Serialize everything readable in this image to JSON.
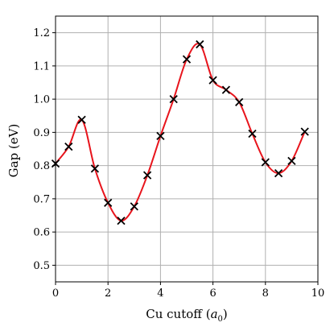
{
  "chart_data": {
    "type": "line",
    "xlabel_main": "Cu cutoff (",
    "xlabel_sym": "a",
    "xlabel_sub": "0",
    "xlabel_close": ")",
    "ylabel": "Gap (eV)",
    "xlim": [
      0,
      10
    ],
    "ylim": [
      0.45,
      1.25
    ],
    "xticks": [
      0,
      2,
      4,
      6,
      8,
      10
    ],
    "yticks": [
      0.5,
      0.6,
      0.7,
      0.8,
      0.9,
      1.0,
      1.1,
      1.2
    ],
    "xtick_labels": [
      "0",
      "2",
      "4",
      "6",
      "8",
      "10"
    ],
    "ytick_labels": [
      "0.5",
      "0.6",
      "0.7",
      "0.8",
      "0.9",
      "1.0",
      "1.1",
      "1.2"
    ],
    "grid": true,
    "series": [
      {
        "marker": "x",
        "line": "smooth",
        "marker_color": "#000000",
        "line_color": "#e8141c",
        "x": [
          0.0,
          0.5,
          1.0,
          1.5,
          2.0,
          2.5,
          3.0,
          3.5,
          4.0,
          4.5,
          5.0,
          5.5,
          6.0,
          6.5,
          7.0,
          7.5,
          8.0,
          8.5,
          9.0,
          9.5
        ],
        "y": [
          0.806,
          0.857,
          0.938,
          0.791,
          0.688,
          0.634,
          0.677,
          0.771,
          0.889,
          1.0,
          1.12,
          1.165,
          1.057,
          1.028,
          0.991,
          0.896,
          0.81,
          0.777,
          0.814,
          0.902
        ]
      }
    ]
  }
}
